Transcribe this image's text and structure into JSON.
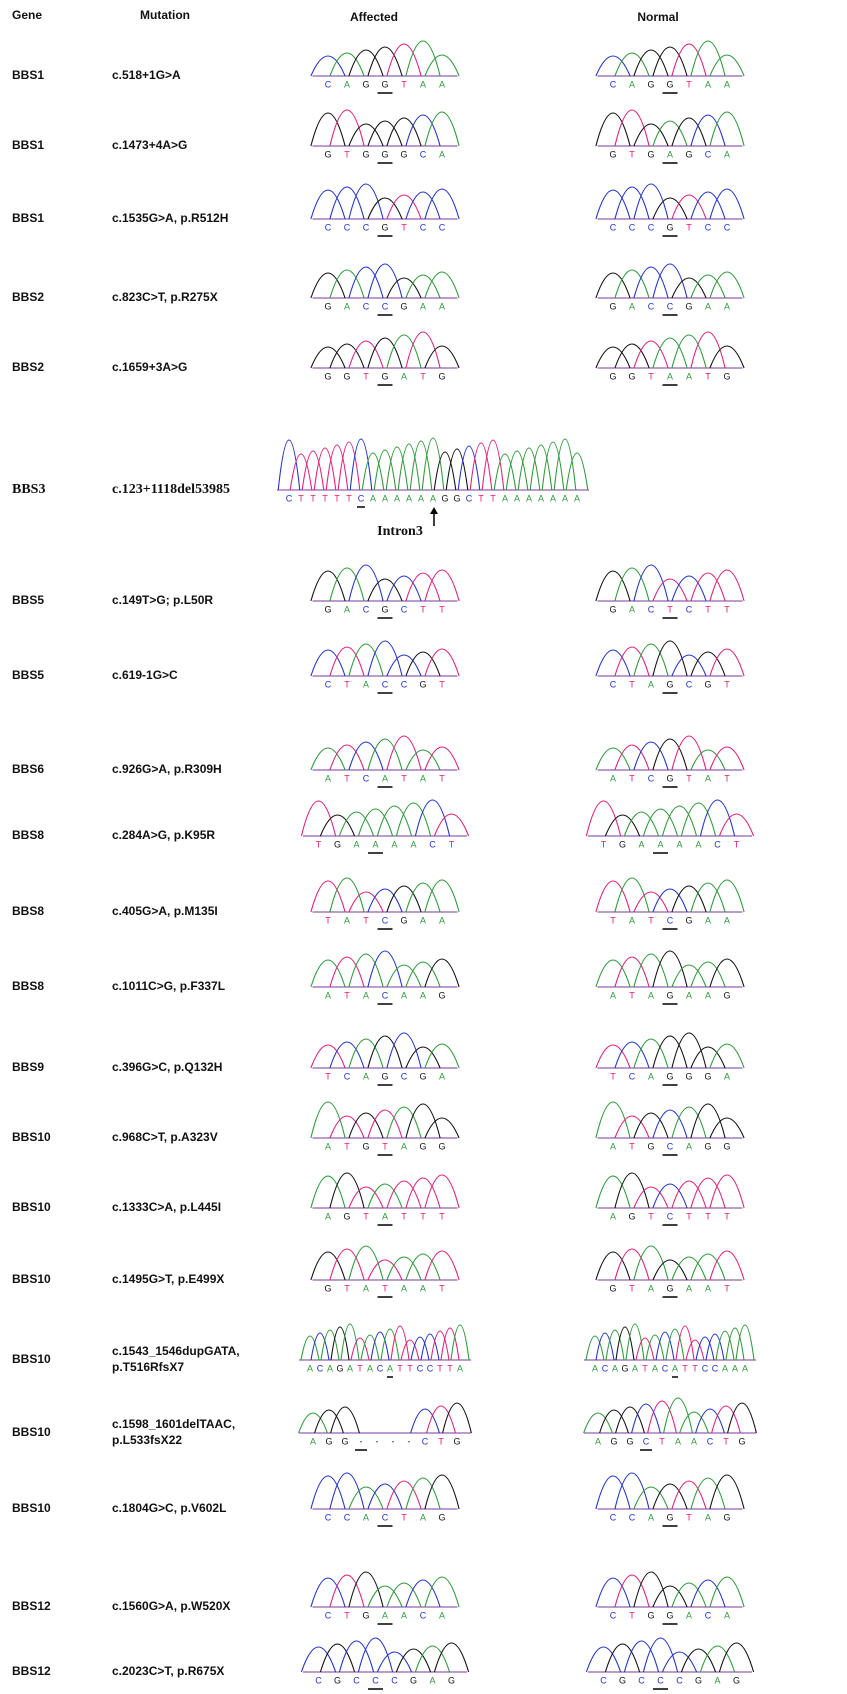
{
  "header": {
    "gene": "Gene",
    "mutation": "Mutation",
    "affected": "Affected",
    "normal": "Normal"
  },
  "rows": [
    {
      "gene": "BBS1",
      "mutation": [
        "c.518+1G>A"
      ],
      "affected": [
        "C",
        "A",
        "G",
        "G",
        "T",
        "A",
        "A"
      ],
      "normal": [
        "C",
        "A",
        "G",
        "G",
        "T",
        "A",
        "A"
      ]
    },
    {
      "gene": "BBS1",
      "mutation": [
        "c.1473+4A>G"
      ],
      "affected": [
        "G",
        "T",
        "G",
        "G",
        "G",
        "C",
        "A"
      ],
      "normal": [
        "G",
        "T",
        "G",
        "A",
        "G",
        "C",
        "A"
      ]
    },
    {
      "gene": "BBS1",
      "mutation": [
        "c.1535G>A, p.R512H"
      ],
      "affected": [
        "C",
        "C",
        "C",
        "G",
        "T",
        "C",
        "C"
      ],
      "normal": [
        "C",
        "C",
        "C",
        "G",
        "T",
        "C",
        "C"
      ]
    },
    {
      "gene": "BBS2",
      "mutation": [
        "c.823C>T, p.R275X"
      ],
      "affected": [
        "G",
        "A",
        "C",
        "C",
        "G",
        "A",
        "A"
      ],
      "normal": [
        "G",
        "A",
        "C",
        "C",
        "G",
        "A",
        "A"
      ]
    },
    {
      "gene": "BBS2",
      "mutation": [
        "c.1659+3A>G"
      ],
      "affected": [
        "G",
        "G",
        "T",
        "G",
        "A",
        "T",
        "G"
      ],
      "normal": [
        "G",
        "G",
        "T",
        "A",
        "A",
        "T",
        "G"
      ]
    },
    {
      "gene": "BBS3",
      "mutation": [
        "c.123+1118del53985"
      ],
      "affected": [
        "C",
        "T",
        "T",
        "T",
        "T",
        "T",
        "C",
        "A",
        "A",
        "A",
        "A",
        "A",
        "A",
        "G",
        "G",
        "C",
        "T",
        "T",
        "A",
        "A",
        "A",
        "A",
        "A",
        "A",
        "A"
      ],
      "normal": [],
      "annotation": "Intron3"
    },
    {
      "gene": "BBS5",
      "mutation": [
        "c.149T>G; p.L50R"
      ],
      "affected": [
        "G",
        "A",
        "C",
        "G",
        "C",
        "T",
        "T"
      ],
      "normal": [
        "G",
        "A",
        "C",
        "T",
        "C",
        "T",
        "T"
      ]
    },
    {
      "gene": "BBS5",
      "mutation": [
        "c.619-1G>C"
      ],
      "affected": [
        "C",
        "T",
        "A",
        "C",
        "C",
        "G",
        "T"
      ],
      "normal": [
        "C",
        "T",
        "A",
        "G",
        "C",
        "G",
        "T"
      ]
    },
    {
      "gene": "BBS6",
      "mutation": [
        "c.926G>A, p.R309H"
      ],
      "affected": [
        "A",
        "T",
        "C",
        "A",
        "T",
        "A",
        "T"
      ],
      "normal": [
        "A",
        "T",
        "C",
        "G",
        "T",
        "A",
        "T"
      ]
    },
    {
      "gene": "BBS8",
      "mutation": [
        "c.284A>G, p.K95R"
      ],
      "affected": [
        "T",
        "G",
        "A",
        "A",
        "A",
        "A",
        "C",
        "T"
      ],
      "normal": [
        "T",
        "G",
        "A",
        "A",
        "A",
        "A",
        "C",
        "T"
      ]
    },
    {
      "gene": "BBS8",
      "mutation": [
        "c.405G>A, p.M135I"
      ],
      "affected": [
        "T",
        "A",
        "T",
        "C",
        "G",
        "A",
        "A"
      ],
      "normal": [
        "T",
        "A",
        "T",
        "C",
        "G",
        "A",
        "A"
      ]
    },
    {
      "gene": "BBS8",
      "mutation": [
        "c.1011C>G, p.F337L"
      ],
      "affected": [
        "A",
        "T",
        "A",
        "C",
        "A",
        "A",
        "G"
      ],
      "normal": [
        "A",
        "T",
        "A",
        "G",
        "A",
        "A",
        "G"
      ]
    },
    {
      "gene": "BBS9",
      "mutation": [
        "c.396G>C, p.Q132H"
      ],
      "affected": [
        "T",
        "C",
        "A",
        "G",
        "C",
        "G",
        "A"
      ],
      "normal": [
        "T",
        "C",
        "A",
        "G",
        "G",
        "G",
        "A"
      ]
    },
    {
      "gene": "BBS10",
      "mutation": [
        "c.968C>T, p.A323V"
      ],
      "affected": [
        "A",
        "T",
        "G",
        "T",
        "A",
        "G",
        "G"
      ],
      "normal": [
        "A",
        "T",
        "G",
        "C",
        "A",
        "G",
        "G"
      ]
    },
    {
      "gene": "BBS10",
      "mutation": [
        "c.1333C>A, p.L445I"
      ],
      "affected": [
        "A",
        "G",
        "T",
        "A",
        "T",
        "T",
        "T"
      ],
      "normal": [
        "A",
        "G",
        "T",
        "C",
        "T",
        "T",
        "T"
      ]
    },
    {
      "gene": "BBS10",
      "mutation": [
        "c.1495G>T, p.E499X"
      ],
      "affected": [
        "G",
        "T",
        "A",
        "T",
        "A",
        "A",
        "T"
      ],
      "normal": [
        "G",
        "T",
        "A",
        "G",
        "A",
        "A",
        "T"
      ]
    },
    {
      "gene": "BBS10",
      "mutation": [
        "c.1543_1546dupGATA,",
        "p.T516RfsX7"
      ],
      "affected": [
        "A",
        "C",
        "A",
        "G",
        "A",
        "T",
        "A",
        "C",
        "A",
        "T",
        "T",
        "C",
        "C",
        "T",
        "T",
        "A"
      ],
      "normal": [
        "A",
        "C",
        "A",
        "G",
        "A",
        "T",
        "A",
        "C",
        "A",
        "T",
        "T",
        "C",
        "C",
        "A",
        "A",
        "A"
      ]
    },
    {
      "gene": "BBS10",
      "mutation": [
        "c.1598_1601delTAAC,",
        "p.L533fsX22"
      ],
      "affected": [
        "A",
        "G",
        "G",
        "-",
        "-",
        "-",
        "-",
        "C",
        "T",
        "G"
      ],
      "normal": [
        "A",
        "G",
        "G",
        "C",
        "T",
        "A",
        "A",
        "C",
        "T",
        "G"
      ]
    },
    {
      "gene": "BBS10",
      "mutation": [
        "c.1804G>C, p.V602L"
      ],
      "affected": [
        "C",
        "C",
        "A",
        "C",
        "T",
        "A",
        "G"
      ],
      "normal": [
        "C",
        "C",
        "A",
        "G",
        "T",
        "A",
        "G"
      ]
    },
    {
      "gene": "BBS12",
      "mutation": [
        "c.1560G>A, p.W520X"
      ],
      "affected": [
        "C",
        "T",
        "G",
        "A",
        "A",
        "C",
        "A"
      ],
      "normal": [
        "C",
        "T",
        "G",
        "G",
        "A",
        "C",
        "A"
      ]
    },
    {
      "gene": "BBS12",
      "mutation": [
        "c.2023C>T, p.R675X"
      ],
      "affected": [
        "C",
        "G",
        "C",
        "C",
        "C",
        "G",
        "A",
        "G"
      ],
      "normal": [
        "C",
        "G",
        "C",
        "C",
        "C",
        "G",
        "A",
        "G"
      ]
    }
  ]
}
